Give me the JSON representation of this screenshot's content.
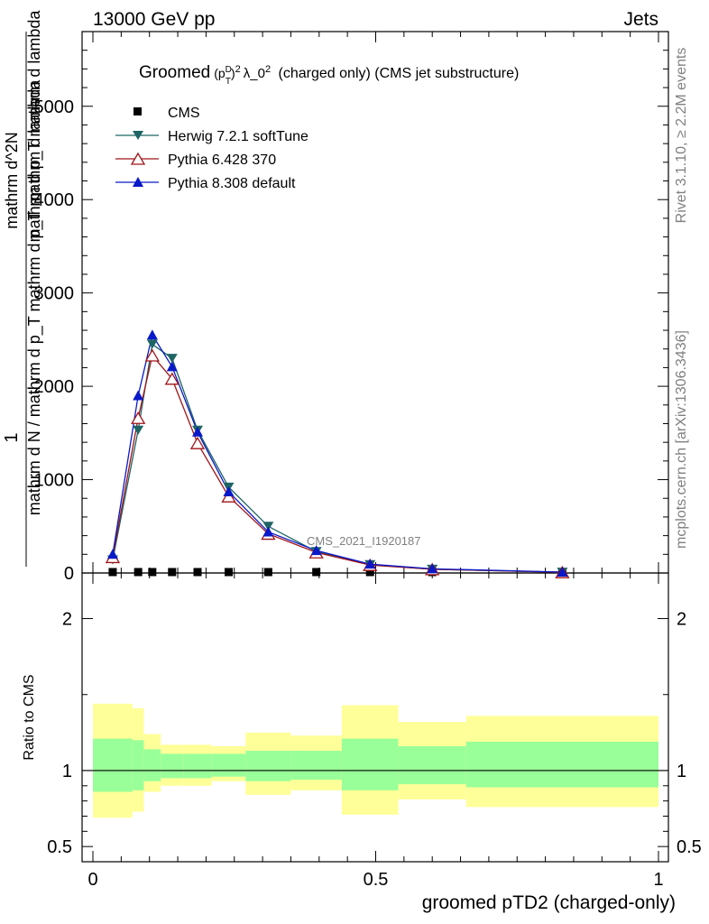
{
  "header": {
    "left": "13000 GeV pp",
    "right": "Jets"
  },
  "side_labels": {
    "rivet": "Rivet 3.1.10, ≥ 2.2M events",
    "mcplots": "mcplots.cern.ch [arXiv:1306.3436]"
  },
  "colors": {
    "cms": "#000000",
    "herwig": "#1e6464",
    "pythia6": "#a01419",
    "pythia8": "#0a19c8",
    "band_inner": "#99ff99",
    "band_outer": "#ffff99"
  },
  "chart_data": {
    "type": "line",
    "title": "Groomed (p_T^D)^2 λ_0^2  (charged only) (CMS jet substructure)",
    "title_parts": {
      "groomed": "Groomed",
      "p": "(p",
      "D": "D",
      "T": "T",
      "close": ")",
      "exp": "2",
      "lambda": "λ_0",
      "rest": " (charged only) (CMS jet substructure)"
    },
    "xlabel": "groomed pTD2 (charged-only)",
    "ylabel_upper": {
      "numer": "1",
      "denom_line1": "mathrm d N / mathrm d p_T mathrm d p_T mathrm d lambda",
      "numer_line2": "mathrm d^2N",
      "denom_part": "mathrm d p_T mathrm d lambda"
    },
    "ylabel_lower": "Ratio to CMS",
    "analysis_tag": "CMS_2021_I1920187",
    "xlim": [
      0,
      1
    ],
    "ylim_upper": [
      0,
      5800
    ],
    "ylim_lower": [
      0.4,
      2.3
    ],
    "x_ticks": [
      "0",
      "0.5",
      "1"
    ],
    "x_tick_values": [
      0,
      0.5,
      1
    ],
    "y_ticks_upper": [
      "0",
      "1000",
      "2000",
      "3000",
      "4000",
      "5000"
    ],
    "y_tick_values_upper": [
      0,
      1000,
      2000,
      3000,
      4000,
      5000
    ],
    "y_ticks_lower": [
      "0.5",
      "1",
      "2"
    ],
    "y_tick_values_lower": [
      0.5,
      1,
      2
    ],
    "legend": [
      "CMS",
      "Herwig 7.2.1 softTune",
      "Pythia 6.428 370",
      "Pythia 8.308 default"
    ],
    "x": [
      0.035,
      0.08,
      0.105,
      0.14,
      0.185,
      0.24,
      0.31,
      0.395,
      0.49,
      0.6,
      0.83
    ],
    "bin_edges": [
      0.0,
      0.07,
      0.09,
      0.12,
      0.16,
      0.21,
      0.27,
      0.35,
      0.44,
      0.54,
      0.66,
      1.0
    ],
    "series": [
      {
        "name": "CMS",
        "values": [
          5,
          5,
          5,
          5,
          5,
          5,
          5,
          5,
          5,
          5,
          5
        ]
      },
      {
        "name": "Herwig 7.2.1 softTune",
        "values": [
          140,
          1530,
          2450,
          2300,
          1530,
          920,
          500,
          230,
          90,
          40,
          8
        ]
      },
      {
        "name": "Pythia 6.428 370",
        "values": [
          170,
          1660,
          2330,
          2080,
          1390,
          820,
          420,
          220,
          85,
          40,
          8
        ]
      },
      {
        "name": "Pythia 8.308 default",
        "values": [
          200,
          1900,
          2550,
          2210,
          1510,
          870,
          440,
          240,
          95,
          45,
          10
        ]
      }
    ],
    "ratio_bands": {
      "inner_low": [
        0.86,
        0.87,
        0.93,
        0.95,
        0.95,
        0.96,
        0.93,
        0.94,
        0.87,
        0.91,
        0.89
      ],
      "inner_high": [
        1.21,
        1.2,
        1.14,
        1.11,
        1.11,
        1.11,
        1.13,
        1.13,
        1.21,
        1.16,
        1.19
      ],
      "outer_low": [
        0.69,
        0.73,
        0.86,
        0.9,
        0.9,
        0.93,
        0.84,
        0.87,
        0.71,
        0.81,
        0.76
      ],
      "outer_high": [
        1.44,
        1.41,
        1.24,
        1.17,
        1.17,
        1.16,
        1.25,
        1.23,
        1.43,
        1.32,
        1.36
      ]
    }
  }
}
